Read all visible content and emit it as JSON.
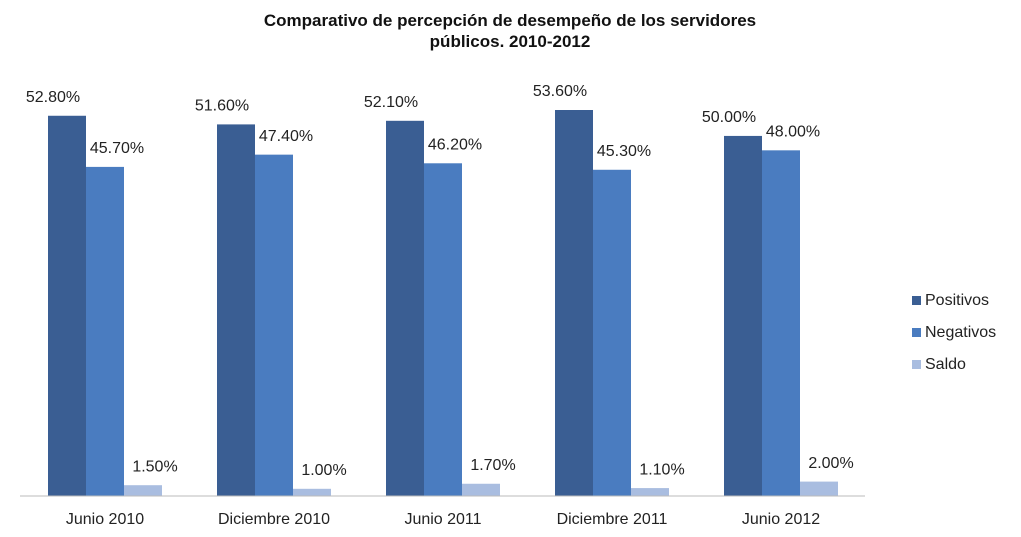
{
  "chart_data": {
    "type": "bar",
    "title": "Comparativo de percepción de desempeño de los servidores públicos. 2010-2012",
    "categories": [
      "Junio 2010",
      "Diciembre 2010",
      "Junio 2011",
      "Diciembre 2011",
      "Junio 2012"
    ],
    "series": [
      {
        "name": "Positivos",
        "color": "#3a5e93",
        "values": [
          52.8,
          51.6,
          52.1,
          53.6,
          50.0
        ],
        "value_labels": [
          "52.80%",
          "51.60%",
          "52.10%",
          "53.60%",
          "50.00%"
        ]
      },
      {
        "name": "Negativos",
        "color": "#4a7cc0",
        "values": [
          45.7,
          47.4,
          46.2,
          45.3,
          48.0
        ],
        "value_labels": [
          "45.70%",
          "47.40%",
          "46.20%",
          "45.30%",
          "48.00%"
        ]
      },
      {
        "name": "Saldo",
        "color": "#a9bde0",
        "values": [
          1.5,
          1.0,
          1.7,
          1.1,
          2.0
        ],
        "value_labels": [
          "1.50%",
          "1.00%",
          "1.70%",
          "1.10%",
          "2.00%"
        ]
      }
    ],
    "legend": "right"
  }
}
